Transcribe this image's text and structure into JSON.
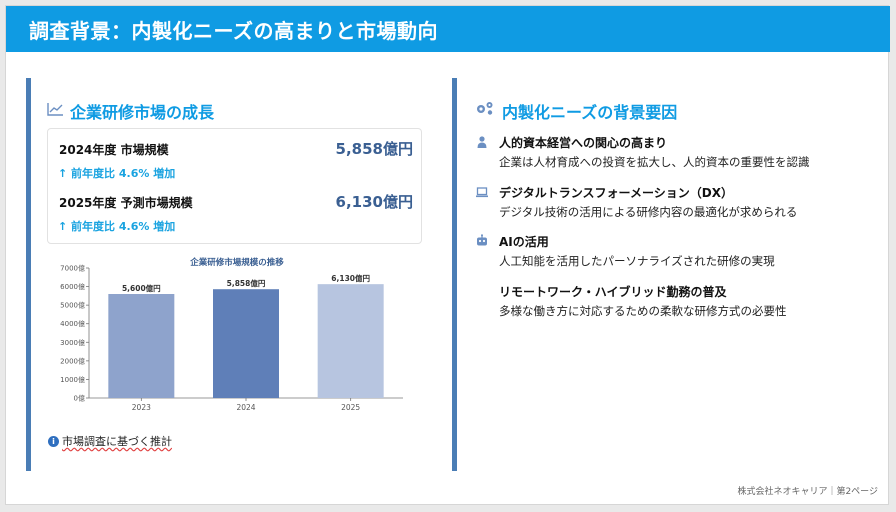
{
  "header": {
    "title": "調査背景：内製化ニーズの高まりと市場動向"
  },
  "left": {
    "section_title": "企業研修市場の成長",
    "stats": [
      {
        "label": "2024年度 市場規模",
        "value": "5,858億円",
        "change": "↑ 前年度比 4.6% 増加"
      },
      {
        "label": "2025年度 予測市場規模",
        "value": "6,130億円",
        "change": "↑ 前年度比 4.6% 増加"
      }
    ],
    "note": "市場調査に基づく推計"
  },
  "chart_data": {
    "type": "bar",
    "title": "企業研修市場規模の推移",
    "categories": [
      "2023",
      "2024",
      "2025"
    ],
    "values": [
      5600,
      5858,
      6130
    ],
    "data_labels": [
      "5,600億円",
      "5,858億円",
      "6,130億円"
    ],
    "y_ticks": [
      "0億",
      "1000億",
      "2000億",
      "3000億",
      "4000億",
      "5000億",
      "6000億",
      "7000億"
    ],
    "ylim": [
      0,
      7000
    ],
    "colors": [
      "#8ea3cc",
      "#5f7fb8",
      "#b7c5e0"
    ],
    "grid": false,
    "legend": "none"
  },
  "right": {
    "section_title": "内製化ニーズの背景要因",
    "items": [
      {
        "icon": "person-icon",
        "title": "人的資本経営への関心の高まり",
        "desc": "企業は人材育成への投資を拡大し、人的資本の重要性を認識"
      },
      {
        "icon": "laptop-icon",
        "title": "デジタルトランスフォーメーション（DX）",
        "desc": "デジタル技術の活用による研修内容の最適化が求められる"
      },
      {
        "icon": "robot-icon",
        "title": "AIの活用",
        "desc": "人工知能を活用したパーソナライズされた研修の実現"
      },
      {
        "icon": "none",
        "title": "リモートワーク・ハイブリッド勤務の普及",
        "desc": "多様な働き方に対応するための柔軟な研修方式の必要性"
      }
    ]
  },
  "footer": {
    "text": "株式会社ネオキャリア｜第2ページ"
  }
}
